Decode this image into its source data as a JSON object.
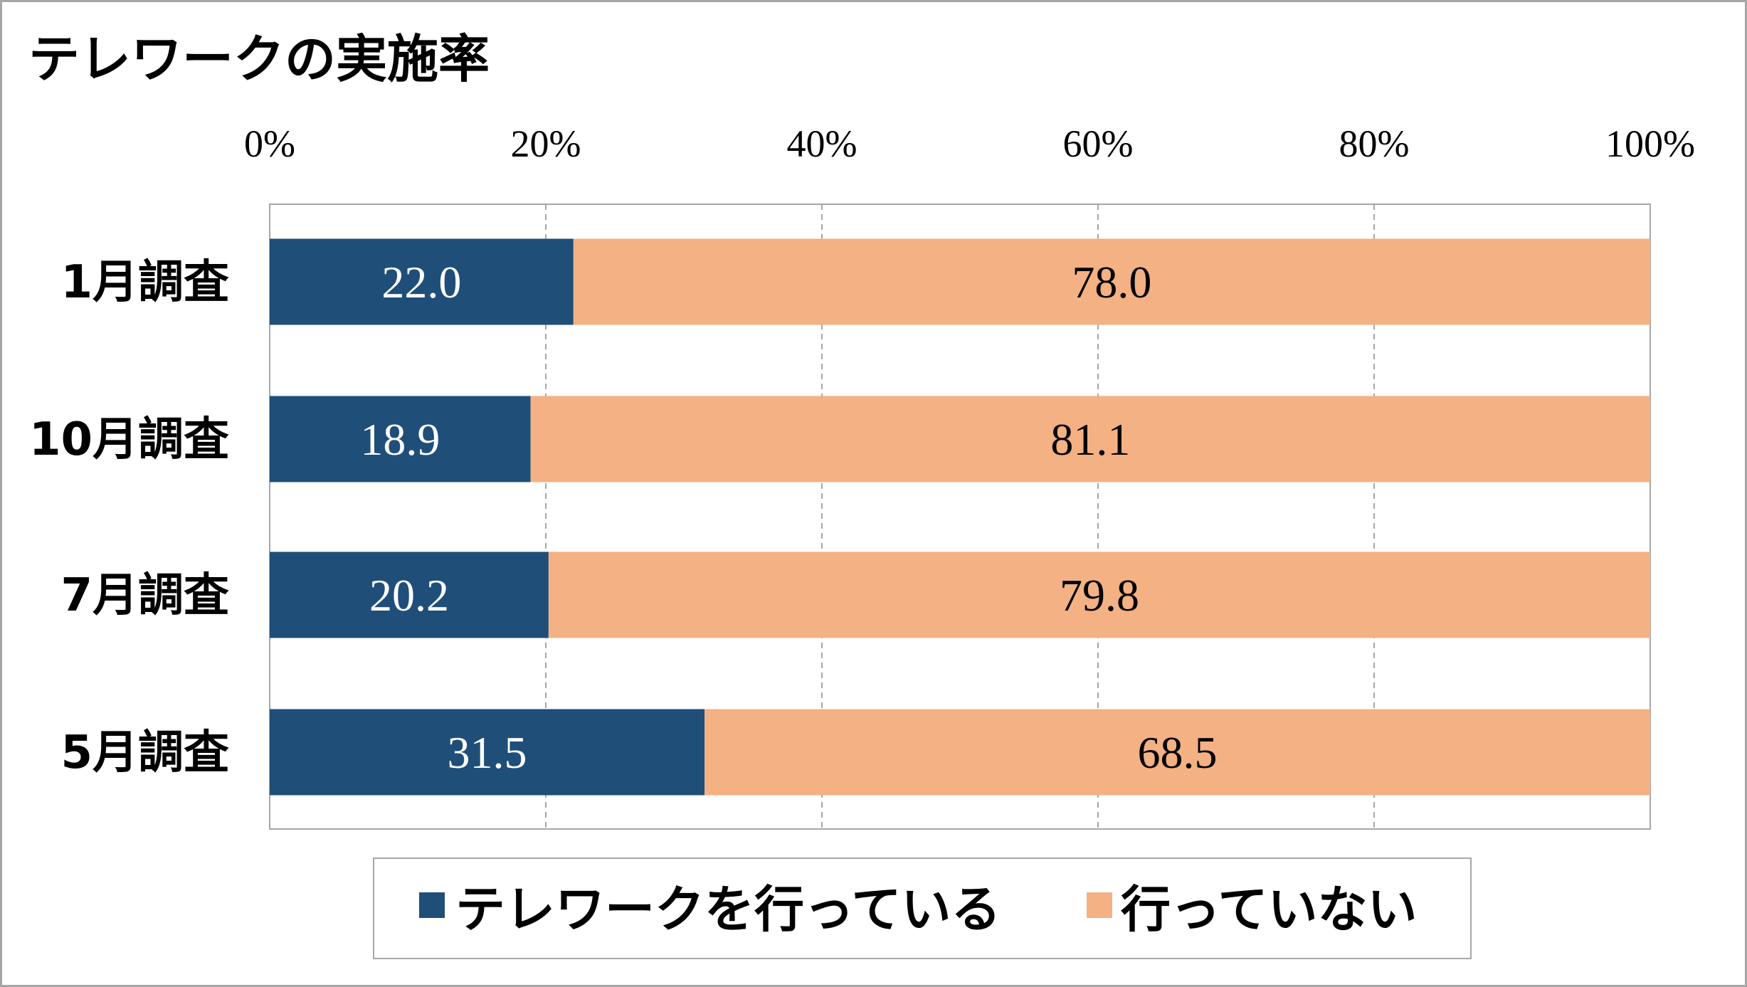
{
  "chart_data": {
    "type": "bar",
    "orientation": "horizontal",
    "stacked": "percent",
    "title": "テレワークの実施率",
    "categories": [
      "1月調査",
      "10月調査",
      "7月調査",
      "5月調査"
    ],
    "series": [
      {
        "name": "テレワークを行っている",
        "values": [
          22.0,
          18.9,
          20.2,
          31.5
        ],
        "labels": [
          "22.0",
          "18.9",
          "20.2",
          "31.5"
        ],
        "color": "#1F4E79",
        "label_color": "#FFFFFF"
      },
      {
        "name": "行っていない",
        "values": [
          78.0,
          81.1,
          79.8,
          68.5
        ],
        "labels": [
          "78.0",
          "81.1",
          "79.8",
          "68.5"
        ],
        "color": "#F4B183",
        "label_color": "#000000"
      }
    ],
    "xticks": [
      0,
      20,
      40,
      60,
      80,
      100
    ],
    "xtick_labels": [
      "0%",
      "20%",
      "40%",
      "60%",
      "80%",
      "100%"
    ],
    "xlim": [
      0,
      100
    ],
    "xaxis_position": "top",
    "grid": "vertical dashed",
    "legend": "bottom",
    "xlabel": "",
    "ylabel": ""
  }
}
